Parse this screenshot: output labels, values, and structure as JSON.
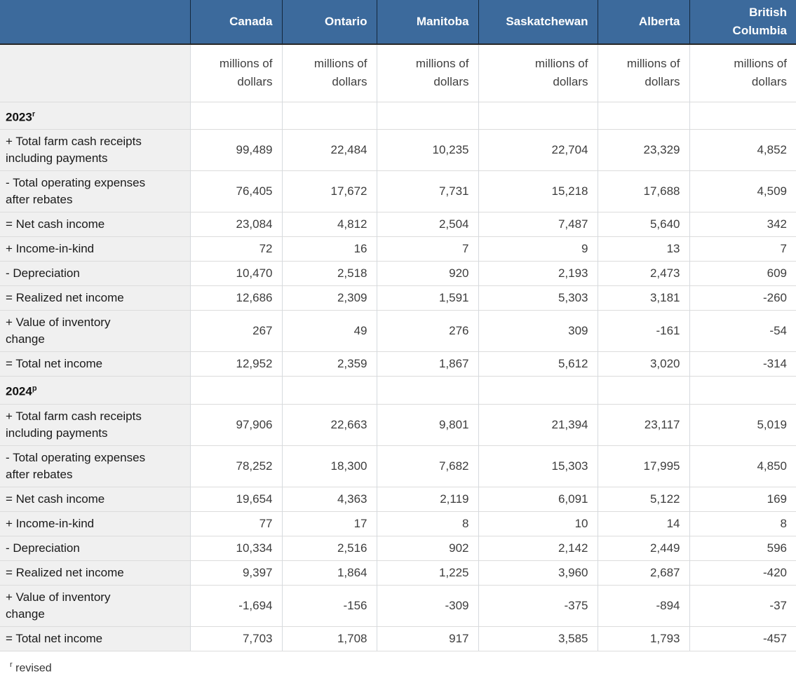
{
  "colors": {
    "header_bg": "#3c6a9c",
    "header_divider": "#14283d",
    "header_underline": "#272727",
    "label_column_bg": "#f0f0f0",
    "grid_horizontal": "#dcdcdc",
    "grid_vertical": "#d6dade",
    "header_text": "#ffffff",
    "body_text": "#3d3d3d"
  },
  "table": {
    "corner_label": "",
    "columns": [
      "Canada",
      "Ontario",
      "Manitoba",
      "Saskatchewan",
      "Alberta",
      "British Columbia"
    ],
    "unit_label": "millions of dollars",
    "sections": [
      {
        "year": "2023",
        "flag": "r",
        "rows": [
          {
            "label": "+ Total farm cash receipts including payments",
            "values": [
              "99,489",
              "22,484",
              "10,235",
              "22,704",
              "23,329",
              "4,852"
            ]
          },
          {
            "label": "- Total operating expenses after rebates",
            "values": [
              "76,405",
              "17,672",
              "7,731",
              "15,218",
              "17,688",
              "4,509"
            ]
          },
          {
            "label": "= Net cash income",
            "values": [
              "23,084",
              "4,812",
              "2,504",
              "7,487",
              "5,640",
              "342"
            ]
          },
          {
            "label": "+ Income-in-kind",
            "values": [
              "72",
              "16",
              "7",
              "9",
              "13",
              "7"
            ]
          },
          {
            "label": "- Depreciation",
            "values": [
              "10,470",
              "2,518",
              "920",
              "2,193",
              "2,473",
              "609"
            ]
          },
          {
            "label": "= Realized net income",
            "values": [
              "12,686",
              "2,309",
              "1,591",
              "5,303",
              "3,181",
              "-260"
            ]
          },
          {
            "label": "+ Value of inventory change",
            "values": [
              "267",
              "49",
              "276",
              "309",
              "-161",
              "-54"
            ]
          },
          {
            "label": "= Total net income",
            "values": [
              "12,952",
              "2,359",
              "1,867",
              "5,612",
              "3,020",
              "-314"
            ]
          }
        ]
      },
      {
        "year": "2024",
        "flag": "p",
        "rows": [
          {
            "label": "+ Total farm cash receipts including payments",
            "values": [
              "97,906",
              "22,663",
              "9,801",
              "21,394",
              "23,117",
              "5,019"
            ]
          },
          {
            "label": "- Total operating expenses after rebates",
            "values": [
              "78,252",
              "18,300",
              "7,682",
              "15,303",
              "17,995",
              "4,850"
            ]
          },
          {
            "label": "= Net cash income",
            "values": [
              "19,654",
              "4,363",
              "2,119",
              "6,091",
              "5,122",
              "169"
            ]
          },
          {
            "label": "+ Income-in-kind",
            "values": [
              "77",
              "17",
              "8",
              "10",
              "14",
              "8"
            ]
          },
          {
            "label": "- Depreciation",
            "values": [
              "10,334",
              "2,516",
              "902",
              "2,142",
              "2,449",
              "596"
            ]
          },
          {
            "label": "= Realized net income",
            "values": [
              "9,397",
              "1,864",
              "1,225",
              "3,960",
              "2,687",
              "-420"
            ]
          },
          {
            "label": "+ Value of inventory change",
            "values": [
              "-1,694",
              "-156",
              "-309",
              "-375",
              "-894",
              "-37"
            ]
          },
          {
            "label": "= Total net income",
            "values": [
              "7,703",
              "1,708",
              "917",
              "3,585",
              "1,793",
              "-457"
            ]
          }
        ]
      }
    ],
    "footnote": {
      "flag": "r",
      "text": "revised"
    }
  }
}
